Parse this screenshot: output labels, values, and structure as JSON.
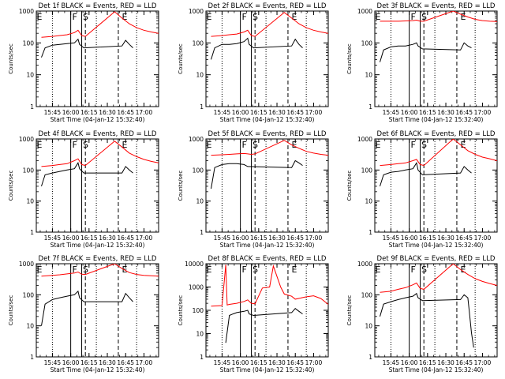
{
  "chart_data": [
    {
      "type": "line",
      "title": "Det 1f BLACK = Events, RED = LLD",
      "xlabel": "Start Time (04-Jan-12 15:32:40)",
      "ylabel": "Counts/sec",
      "yscale": "log",
      "ylim": [
        1,
        1000
      ],
      "xlim": [
        15.53,
        17.2
      ],
      "x_ticks": [
        "15:45",
        "16:00",
        "16:15",
        "16:30",
        "16:45",
        "17:00"
      ],
      "y_ticks": [
        "1",
        "10",
        "100",
        "1000"
      ],
      "markers": {
        "dotted": [
          15.75,
          16.35,
          16.9
        ],
        "solid": [
          16.0,
          16.15
        ],
        "dashed": [
          16.2,
          16.65
        ],
        "letters": [
          "E",
          "F",
          "S",
          "E"
        ]
      },
      "series": [
        {
          "color": "#000000",
          "x": [
            15.6,
            15.65,
            15.75,
            15.85,
            15.95,
            16.05,
            16.1,
            16.12,
            16.18,
            16.7,
            16.75,
            16.8,
            16.85
          ],
          "y": [
            35,
            70,
            85,
            90,
            95,
            100,
            130,
            90,
            70,
            80,
            120,
            90,
            70
          ]
        },
        {
          "color": "#ff0000",
          "x": [
            15.6,
            15.75,
            15.85,
            15.95,
            16.05,
            16.1,
            16.15,
            16.2,
            16.6,
            16.7,
            16.8,
            16.9,
            17.0,
            17.1,
            17.2
          ],
          "y": [
            150,
            160,
            170,
            180,
            210,
            250,
            170,
            160,
            950,
            600,
            400,
            300,
            250,
            220,
            200
          ]
        }
      ]
    },
    {
      "type": "line",
      "title": "Det 2f BLACK = Events, RED = LLD",
      "xlabel": "Start Time (04-Jan-12 15:32:40)",
      "ylabel": "Counts/sec",
      "yscale": "log",
      "ylim": [
        1,
        1000
      ],
      "xlim": [
        15.53,
        17.2
      ],
      "x_ticks": [
        "15:45",
        "16:00",
        "16:15",
        "16:30",
        "16:45",
        "17:00"
      ],
      "y_ticks": [
        "1",
        "10",
        "100",
        "1000"
      ],
      "markers": {
        "dotted": [
          15.75,
          16.35,
          16.9
        ],
        "solid": [
          16.0,
          16.15
        ],
        "dashed": [
          16.2,
          16.65
        ],
        "letters": [
          "E",
          "F",
          "S",
          "E"
        ]
      },
      "series": [
        {
          "color": "#000000",
          "x": [
            15.6,
            15.65,
            15.75,
            15.85,
            15.95,
            16.05,
            16.1,
            16.12,
            16.18,
            16.7,
            16.75,
            16.8,
            16.85
          ],
          "y": [
            30,
            70,
            90,
            90,
            95,
            110,
            140,
            90,
            70,
            80,
            130,
            90,
            70
          ]
        },
        {
          "color": "#ff0000",
          "x": [
            15.6,
            15.75,
            15.85,
            15.95,
            16.05,
            16.1,
            16.15,
            16.2,
            16.6,
            16.7,
            16.8,
            16.9,
            17.0,
            17.1,
            17.2
          ],
          "y": [
            160,
            170,
            180,
            190,
            220,
            250,
            170,
            160,
            900,
            600,
            400,
            300,
            250,
            220,
            200
          ]
        }
      ]
    },
    {
      "type": "line",
      "title": "Det 3f BLACK = Events, RED = LLD",
      "xlabel": "Start Time (04-Jan-12 15:32:40)",
      "ylabel": "Counts/sec",
      "yscale": "log",
      "ylim": [
        1,
        1000
      ],
      "xlim": [
        15.53,
        17.2
      ],
      "x_ticks": [
        "15:45",
        "16:00",
        "16:15",
        "16:30",
        "16:45",
        "17:00"
      ],
      "y_ticks": [
        "1",
        "10",
        "100",
        "1000"
      ],
      "markers": {
        "dotted": [
          15.75,
          16.35,
          16.9
        ],
        "solid": [
          16.0,
          16.15
        ],
        "dashed": [
          16.2,
          16.65
        ],
        "letters": [
          "E",
          "F",
          "S",
          "E"
        ]
      },
      "series": [
        {
          "color": "#000000",
          "x": [
            15.6,
            15.65,
            15.75,
            15.85,
            15.95,
            16.05,
            16.1,
            16.12,
            16.18,
            16.7,
            16.75,
            16.8,
            16.85
          ],
          "y": [
            25,
            60,
            75,
            80,
            80,
            90,
            100,
            80,
            65,
            60,
            100,
            80,
            70
          ]
        },
        {
          "color": "#ff0000",
          "x": [
            15.6,
            15.75,
            15.85,
            15.95,
            16.05,
            16.1,
            16.15,
            16.2,
            16.6,
            16.7,
            16.8,
            16.9,
            17.0,
            17.1,
            17.2
          ],
          "y": [
            480,
            480,
            480,
            490,
            500,
            520,
            480,
            480,
            1000,
            800,
            650,
            550,
            500,
            480,
            470
          ]
        }
      ]
    },
    {
      "type": "line",
      "title": "Det 4f BLACK = Events, RED = LLD",
      "xlabel": "Start Time (04-Jan-12 15:32:40)",
      "ylabel": "Counts/sec",
      "yscale": "log",
      "ylim": [
        1,
        1000
      ],
      "xlim": [
        15.53,
        17.2
      ],
      "x_ticks": [
        "15:45",
        "16:00",
        "16:15",
        "16:30",
        "16:45",
        "17:00"
      ],
      "y_ticks": [
        "1",
        "10",
        "100",
        "1000"
      ],
      "markers": {
        "dotted": [
          15.75,
          16.35,
          16.9
        ],
        "solid": [
          16.0,
          16.15
        ],
        "dashed": [
          16.2,
          16.65
        ],
        "letters": [
          "E",
          "F",
          "S",
          "E"
        ]
      },
      "series": [
        {
          "color": "#000000",
          "x": [
            15.6,
            15.65,
            15.75,
            15.85,
            15.95,
            16.05,
            16.1,
            16.12,
            16.18,
            16.7,
            16.75,
            16.8,
            16.85
          ],
          "y": [
            30,
            70,
            80,
            90,
            100,
            110,
            170,
            110,
            80,
            80,
            130,
            100,
            80
          ]
        },
        {
          "color": "#ff0000",
          "x": [
            15.6,
            15.75,
            15.85,
            15.95,
            16.05,
            16.1,
            16.15,
            16.2,
            16.6,
            16.7,
            16.8,
            16.9,
            17.0,
            17.1,
            17.2
          ],
          "y": [
            130,
            140,
            150,
            160,
            200,
            230,
            150,
            140,
            850,
            550,
            350,
            270,
            220,
            190,
            170
          ]
        }
      ]
    },
    {
      "type": "line",
      "title": "Det 5f BLACK = Events, RED = LLD",
      "xlabel": "Start Time (04-Jan-12 15:32:40)",
      "ylabel": "Counts/sec",
      "yscale": "log",
      "ylim": [
        1,
        1000
      ],
      "xlim": [
        15.53,
        17.2
      ],
      "x_ticks": [
        "15:45",
        "16:00",
        "16:15",
        "16:30",
        "16:45",
        "17:00"
      ],
      "y_ticks": [
        "1",
        "10",
        "100",
        "1000"
      ],
      "markers": {
        "dotted": [
          15.75,
          16.35,
          16.9
        ],
        "solid": [
          16.0,
          16.15
        ],
        "dashed": [
          16.2,
          16.65
        ],
        "letters": [
          "E",
          "F",
          "S",
          "E"
        ]
      },
      "series": [
        {
          "color": "#000000",
          "x": [
            15.6,
            15.65,
            15.75,
            15.85,
            15.95,
            16.05,
            16.1,
            16.7,
            16.75,
            16.8,
            16.85
          ],
          "y": [
            25,
            120,
            150,
            160,
            160,
            150,
            130,
            120,
            200,
            170,
            140
          ]
        },
        {
          "color": "#ff0000",
          "x": [
            15.6,
            15.75,
            15.85,
            15.95,
            16.05,
            16.1,
            16.15,
            16.2,
            16.6,
            16.7,
            16.8,
            16.9,
            17.0,
            17.1,
            17.2
          ],
          "y": [
            300,
            310,
            320,
            330,
            340,
            330,
            320,
            330,
            900,
            650,
            500,
            400,
            350,
            320,
            300
          ]
        }
      ]
    },
    {
      "type": "line",
      "title": "Det 6f BLACK = Events, RED = LLD",
      "xlabel": "Start Time (04-Jan-12 15:32:40)",
      "ylabel": "Counts/sec",
      "yscale": "log",
      "ylim": [
        1,
        1000
      ],
      "xlim": [
        15.53,
        17.2
      ],
      "x_ticks": [
        "15:45",
        "16:00",
        "16:15",
        "16:30",
        "16:45",
        "17:00"
      ],
      "y_ticks": [
        "1",
        "10",
        "100",
        "1000"
      ],
      "markers": {
        "dotted": [
          15.75,
          16.35,
          16.9
        ],
        "solid": [
          16.0,
          16.15
        ],
        "dashed": [
          16.2,
          16.65
        ],
        "letters": [
          "E",
          "F",
          "S",
          "E"
        ]
      },
      "series": [
        {
          "color": "#000000",
          "x": [
            15.6,
            15.65,
            15.75,
            15.85,
            15.95,
            16.05,
            16.1,
            16.12,
            16.18,
            16.7,
            16.75,
            16.8,
            16.85
          ],
          "y": [
            30,
            70,
            85,
            90,
            100,
            110,
            170,
            100,
            70,
            80,
            130,
            100,
            80
          ]
        },
        {
          "color": "#ff0000",
          "x": [
            15.6,
            15.75,
            15.85,
            15.95,
            16.05,
            16.1,
            16.15,
            16.2,
            16.6,
            16.7,
            16.8,
            16.9,
            17.0,
            17.1,
            17.2
          ],
          "y": [
            140,
            150,
            160,
            170,
            200,
            220,
            150,
            140,
            1000,
            650,
            420,
            320,
            260,
            230,
            200
          ]
        }
      ]
    },
    {
      "type": "line",
      "title": "Det 7f BLACK = Events, RED = LLD",
      "xlabel": "Start Time (04-Jan-12 15:32:40)",
      "ylabel": "Counts/sec",
      "yscale": "log",
      "ylim": [
        1,
        1000
      ],
      "xlim": [
        15.53,
        17.2
      ],
      "x_ticks": [
        "15:45",
        "16:00",
        "16:15",
        "16:30",
        "16:45",
        "17:00"
      ],
      "y_ticks": [
        "1",
        "10",
        "100",
        "1000"
      ],
      "markers": {
        "dotted": [
          15.75,
          16.35,
          16.9
        ],
        "solid": [
          16.0,
          16.15
        ],
        "dashed": [
          16.2,
          16.65
        ],
        "letters": [
          "E",
          "F",
          "S",
          "E"
        ]
      },
      "series": [
        {
          "color": "#000000",
          "x": [
            15.6,
            15.65,
            15.75,
            15.85,
            15.95,
            16.05,
            16.1,
            16.12,
            16.18,
            16.7,
            16.75,
            16.8,
            16.85
          ],
          "y": [
            10,
            50,
            70,
            80,
            90,
            100,
            130,
            80,
            60,
            60,
            110,
            80,
            60
          ]
        },
        {
          "color": "#ff0000",
          "x": [
            15.6,
            15.75,
            15.85,
            15.95,
            16.05,
            16.1,
            16.15,
            16.2,
            16.6,
            16.7,
            16.8,
            16.9,
            17.0,
            17.1,
            17.2
          ],
          "y": [
            400,
            420,
            440,
            470,
            500,
            540,
            460,
            450,
            1000,
            700,
            520,
            450,
            420,
            410,
            400
          ]
        }
      ]
    },
    {
      "type": "line",
      "title": "Det 8f BLACK = Events, RED = LLD",
      "xlabel": "Start Time (04-Jan-12 15:32:40)",
      "ylabel": "Counts/sec",
      "yscale": "log",
      "ylim": [
        1,
        10000
      ],
      "xlim": [
        15.53,
        17.2
      ],
      "x_ticks": [
        "15:45",
        "16:00",
        "16:15",
        "16:30",
        "16:45",
        "17:00"
      ],
      "y_ticks": [
        "1",
        "10",
        "100",
        "1000",
        "10000"
      ],
      "markers": {
        "dotted": [
          15.75,
          16.35,
          16.9
        ],
        "solid": [
          16.0,
          16.15
        ],
        "dashed": [
          16.2,
          16.65
        ],
        "letters": [
          "E",
          "F",
          "S",
          "E"
        ]
      },
      "series": [
        {
          "color": "#000000",
          "x": [
            15.8,
            15.85,
            15.9,
            15.95,
            16.05,
            16.1,
            16.12,
            16.18,
            16.7,
            16.75,
            16.8,
            16.85
          ],
          "y": [
            4,
            60,
            70,
            80,
            90,
            100,
            70,
            60,
            80,
            120,
            90,
            70
          ]
        },
        {
          "color": "#ff0000",
          "x": [
            15.6,
            15.75,
            15.8,
            15.82,
            15.85,
            15.95,
            16.05,
            16.1,
            16.15,
            16.2,
            16.3,
            16.4,
            16.45,
            16.55,
            16.6,
            16.7,
            16.75,
            16.85,
            16.9,
            17.0,
            17.1,
            17.2
          ],
          "y": [
            150,
            160,
            9000,
            170,
            180,
            200,
            240,
            280,
            200,
            190,
            900,
            1000,
            8000,
            1000,
            500,
            400,
            300,
            350,
            380,
            420,
            320,
            180
          ]
        }
      ]
    },
    {
      "type": "line",
      "title": "Det 9f BLACK = Events, RED = LLD",
      "xlabel": "Start Time (04-Jan-12 15:32:40)",
      "ylabel": "Counts/sec",
      "yscale": "log",
      "ylim": [
        1,
        1000
      ],
      "xlim": [
        15.53,
        17.2
      ],
      "x_ticks": [
        "15:45",
        "16:00",
        "16:15",
        "16:30",
        "16:45",
        "17:00"
      ],
      "y_ticks": [
        "1",
        "10",
        "100",
        "1000"
      ],
      "markers": {
        "dotted": [
          15.75,
          16.35,
          16.9
        ],
        "solid": [
          16.0,
          16.15
        ],
        "dashed": [
          16.2,
          16.65
        ],
        "letters": [
          "E",
          "F",
          "S",
          "E"
        ]
      },
      "series": [
        {
          "color": "#000000",
          "x": [
            15.6,
            15.65,
            15.75,
            15.85,
            15.95,
            16.05,
            16.1,
            16.12,
            16.18,
            16.7,
            16.75,
            16.8,
            16.82,
            16.85,
            16.88
          ],
          "y": [
            20,
            50,
            60,
            70,
            80,
            90,
            110,
            80,
            65,
            70,
            100,
            80,
            30,
            6,
            2
          ]
        },
        {
          "color": "#ff0000",
          "x": [
            15.6,
            15.75,
            15.85,
            15.95,
            16.05,
            16.1,
            16.15,
            16.2,
            16.6,
            16.7,
            16.8,
            16.9,
            17.0,
            17.1,
            17.2
          ],
          "y": [
            120,
            130,
            150,
            170,
            210,
            240,
            160,
            150,
            1000,
            650,
            450,
            330,
            270,
            230,
            200
          ]
        }
      ]
    }
  ]
}
